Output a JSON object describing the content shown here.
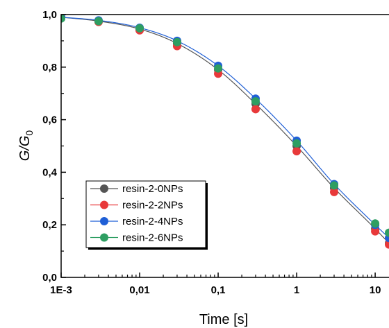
{
  "chart_data": {
    "type": "scatter",
    "xlabel": "Time [s]",
    "ylabel": "G/G",
    "ylabel_subscript": "0",
    "x_scale": "log",
    "xlim": [
      0.001,
      15
    ],
    "ylim": [
      0,
      1
    ],
    "x_ticks": [
      {
        "value": 0.001,
        "label": "1E-3"
      },
      {
        "value": 0.01,
        "label": "0,01"
      },
      {
        "value": 0.1,
        "label": "0,1"
      },
      {
        "value": 1,
        "label": "1"
      },
      {
        "value": 10,
        "label": "10"
      }
    ],
    "y_ticks": [
      {
        "value": 0.0,
        "label": "0,0"
      },
      {
        "value": 0.2,
        "label": "0,2"
      },
      {
        "value": 0.4,
        "label": "0,4"
      },
      {
        "value": 0.6,
        "label": "0,6"
      },
      {
        "value": 0.8,
        "label": "0,8"
      },
      {
        "value": 1.0,
        "label": "1,0"
      }
    ],
    "grid": false,
    "legend_position": "bottom-left",
    "series": [
      {
        "name": "resin-2-0NPs",
        "color": "#555555",
        "line": true,
        "x": [
          0.001,
          0.003,
          0.01,
          0.03,
          0.1,
          0.3,
          1,
          3,
          10,
          15
        ],
        "y": [
          0.99,
          0.975,
          0.945,
          0.89,
          0.79,
          0.66,
          0.5,
          0.34,
          0.185,
          0.13
        ]
      },
      {
        "name": "resin-2-2NPs",
        "color": "#e8393a",
        "line": false,
        "x": [
          0.001,
          0.003,
          0.01,
          0.03,
          0.1,
          0.3,
          1,
          3,
          10,
          15
        ],
        "y": [
          0.99,
          0.972,
          0.94,
          0.88,
          0.775,
          0.64,
          0.48,
          0.325,
          0.175,
          0.125
        ]
      },
      {
        "name": "resin-2-4NPs",
        "color": "#1f5fd6",
        "line": true,
        "x": [
          0.001,
          0.003,
          0.01,
          0.03,
          0.1,
          0.3,
          1,
          3,
          10,
          15
        ],
        "y": [
          0.99,
          0.978,
          0.95,
          0.9,
          0.805,
          0.68,
          0.52,
          0.355,
          0.2,
          0.15
        ]
      },
      {
        "name": "resin-2-6NPs",
        "color": "#2e9e62",
        "line": false,
        "x": [
          0.001,
          0.003,
          0.01,
          0.03,
          0.1,
          0.3,
          1,
          3,
          10,
          15
        ],
        "y": [
          0.985,
          0.975,
          0.948,
          0.895,
          0.795,
          0.67,
          0.51,
          0.35,
          0.205,
          0.17
        ]
      }
    ]
  }
}
